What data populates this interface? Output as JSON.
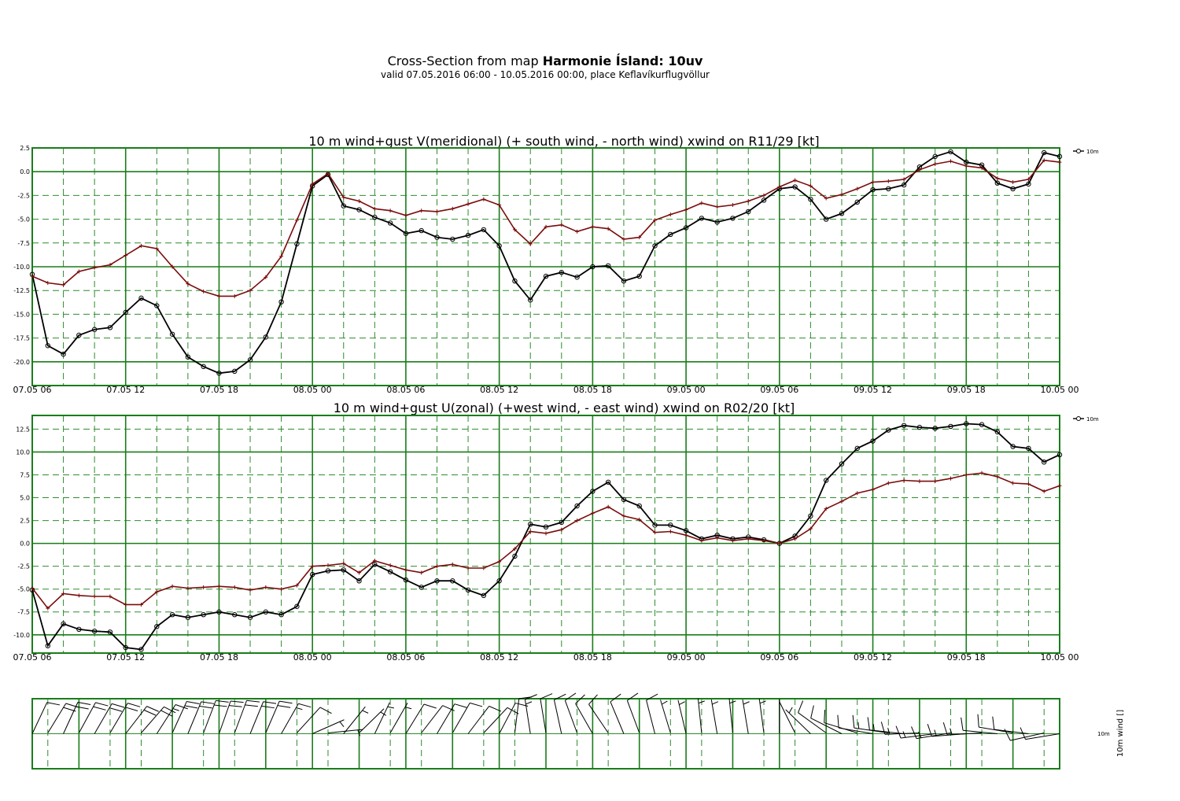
{
  "header": {
    "title_prefix": "Cross-Section from map ",
    "title_bold": "Harmonie Ísland: 10uv",
    "subtitle": "valid 07.05.2016 06:00 - 10.05.2016 00:00, place Keflavíkurflugvöllur"
  },
  "colors": {
    "frame": "#1a7d1a",
    "minor_grid": "#2e8b2e",
    "wind": "#000000",
    "gust": "#7a0c0c"
  },
  "chart_data": [
    {
      "type": "line",
      "title": "10 m wind+gust V(meridional) (+ south wind, - north wind) xwind on R11/29 [kt]",
      "x_tick_labels": [
        "07.05 06",
        "07.05 12",
        "07.05 18",
        "08.05 00",
        "08.05 06",
        "08.05 12",
        "08.05 18",
        "09.05 00",
        "09.05 06",
        "09.05 12",
        "09.05 18",
        "10.05 00"
      ],
      "x_range_hours": [
        0,
        66
      ],
      "x_step_hours": 1,
      "ylim": [
        -22.5,
        2.5
      ],
      "y_ticks": [
        "2.5",
        "0.0",
        "-2.5",
        "-5.0",
        "-7.5",
        "-10.0",
        "-12.5",
        "-15.0",
        "-17.5",
        "-20.0"
      ],
      "legend": "10m",
      "series": [
        {
          "name": "10m",
          "marker": "circle",
          "values": [
            -10.8,
            -18.3,
            -19.2,
            -17.2,
            -16.6,
            -16.4,
            -14.8,
            -13.3,
            -14.1,
            -17.1,
            -19.5,
            -20.5,
            -21.2,
            -21.0,
            -19.8,
            -17.4,
            -13.7,
            -7.6,
            -1.5,
            -0.3,
            -3.6,
            -4.0,
            -4.8,
            -5.4,
            -6.5,
            -6.2,
            -6.9,
            -7.1,
            -6.7,
            -6.1,
            -7.8,
            -11.5,
            -13.5,
            -11.0,
            -10.6,
            -11.1,
            -10.0,
            -9.9,
            -11.5,
            -11.0,
            -7.8,
            -6.6,
            -5.9,
            -4.9,
            -5.3,
            -4.9,
            -4.2,
            -3.0,
            -1.8,
            -1.6,
            -2.9,
            -5.0,
            -4.4,
            -3.2,
            -1.9,
            -1.8,
            -1.4,
            0.5,
            1.6,
            2.1,
            1.0,
            0.7,
            -1.2,
            -1.8,
            -1.3,
            2.0,
            1.6
          ]
        },
        {
          "name": "",
          "marker": "plus",
          "values": [
            -11.0,
            -11.7,
            -11.9,
            -10.5,
            -10.1,
            -9.8,
            -8.8,
            -7.8,
            -8.1,
            -10.0,
            -11.8,
            -12.6,
            -13.1,
            -13.1,
            -12.5,
            -11.1,
            -8.9,
            -5.1,
            -1.3,
            -0.2,
            -2.7,
            -3.1,
            -3.9,
            -4.1,
            -4.6,
            -4.1,
            -4.2,
            -3.9,
            -3.4,
            -2.9,
            -3.5,
            -6.1,
            -7.6,
            -5.8,
            -5.6,
            -6.3,
            -5.8,
            -6.0,
            -7.1,
            -6.9,
            -5.1,
            -4.5,
            -4.0,
            -3.3,
            -3.7,
            -3.5,
            -3.1,
            -2.5,
            -1.6,
            -0.9,
            -1.5,
            -2.8,
            -2.4,
            -1.8,
            -1.1,
            -1.0,
            -0.8,
            0.2,
            0.8,
            1.1,
            0.6,
            0.4,
            -0.7,
            -1.1,
            -0.8,
            1.2,
            1.0
          ]
        }
      ]
    },
    {
      "type": "line",
      "title": "10 m wind+gust U(zonal) (+west wind, - east wind) xwind on R02/20 [kt]",
      "x_tick_labels": [
        "07.05 06",
        "07.05 12",
        "07.05 18",
        "08.05 00",
        "08.05 06",
        "08.05 12",
        "08.05 18",
        "09.05 00",
        "09.05 06",
        "09.05 12",
        "09.05 18",
        "10.05 00"
      ],
      "x_range_hours": [
        0,
        66
      ],
      "x_step_hours": 1,
      "ylim": [
        -12.0,
        14.0
      ],
      "y_ticks": [
        "12.5",
        "10.0",
        "7.5",
        "5.0",
        "2.5",
        "0.0",
        "-2.5",
        "-5.0",
        "-7.5",
        "-10.0"
      ],
      "legend": "10m",
      "series": [
        {
          "name": "10m",
          "marker": "circle",
          "values": [
            -5.1,
            -11.2,
            -8.8,
            -9.4,
            -9.6,
            -9.7,
            -11.4,
            -11.6,
            -9.1,
            -7.8,
            -8.1,
            -7.8,
            -7.5,
            -7.8,
            -8.1,
            -7.5,
            -7.8,
            -6.9,
            -3.4,
            -3.0,
            -2.9,
            -4.1,
            -2.3,
            -3.1,
            -4.0,
            -4.8,
            -4.1,
            -4.1,
            -5.1,
            -5.7,
            -4.1,
            -1.4,
            2.1,
            1.8,
            2.3,
            4.1,
            5.7,
            6.7,
            4.8,
            4.1,
            2.0,
            2.0,
            1.4,
            0.5,
            0.9,
            0.5,
            0.7,
            0.4,
            0.0,
            0.8,
            3.0,
            6.9,
            8.7,
            10.4,
            11.2,
            12.4,
            12.9,
            12.7,
            12.6,
            12.8,
            13.1,
            13.0,
            12.2,
            10.6,
            10.4,
            8.9,
            9.7
          ]
        },
        {
          "name": "",
          "marker": "plus",
          "values": [
            -4.9,
            -7.1,
            -5.5,
            -5.7,
            -5.8,
            -5.8,
            -6.7,
            -6.7,
            -5.3,
            -4.7,
            -4.9,
            -4.8,
            -4.7,
            -4.8,
            -5.1,
            -4.8,
            -5.0,
            -4.6,
            -2.5,
            -2.4,
            -2.2,
            -3.2,
            -1.9,
            -2.4,
            -2.9,
            -3.2,
            -2.5,
            -2.3,
            -2.7,
            -2.7,
            -2.0,
            -0.6,
            1.3,
            1.1,
            1.5,
            2.5,
            3.3,
            4.0,
            3.0,
            2.6,
            1.2,
            1.3,
            0.9,
            0.3,
            0.6,
            0.3,
            0.5,
            0.3,
            0.0,
            0.5,
            1.6,
            3.8,
            4.6,
            5.5,
            5.9,
            6.6,
            6.9,
            6.8,
            6.8,
            7.1,
            7.5,
            7.7,
            7.3,
            6.6,
            6.5,
            5.7,
            6.3
          ]
        }
      ]
    },
    {
      "type": "barbs",
      "label_right": "10m",
      "axis_label": "10m wind []",
      "x_range_hours": [
        0,
        66
      ],
      "x_step_hours": 1
    }
  ]
}
